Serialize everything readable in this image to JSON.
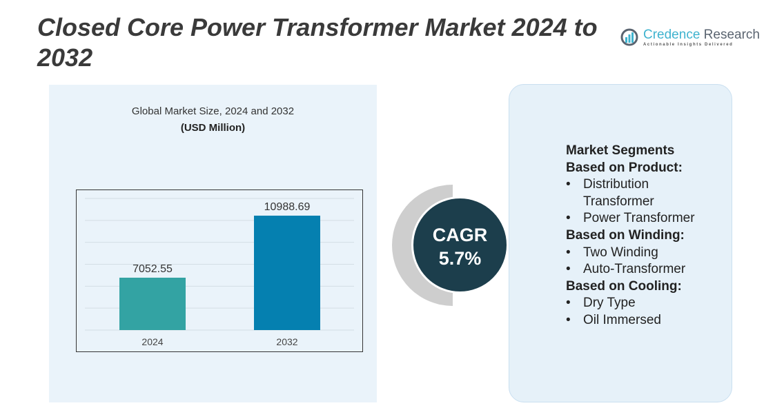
{
  "title": "Closed Core Power Transformer Market 2024 to 2032",
  "logo": {
    "name_a": "Credence",
    "name_b": " Research",
    "tagline": "Actionable Insights Delivered"
  },
  "chart_subtitle": "Global Market Size, 2024 and 2032",
  "chart_units": "(USD Million)",
  "cagr": {
    "label": "CAGR",
    "value": "5.7%"
  },
  "segments": {
    "heading": "Market Segments",
    "groups": [
      {
        "title": "Based on Product:",
        "items": [
          "Distribution Transformer",
          "Power Transformer"
        ]
      },
      {
        "title": "Based on Winding:",
        "items": [
          "Two Winding",
          "Auto-Transformer"
        ]
      },
      {
        "title": "Based on Cooling:",
        "items": [
          "Dry Type",
          "Oil Immersed"
        ]
      }
    ]
  },
  "chart_data": {
    "type": "bar",
    "title": "Global Market Size, 2024 and 2032 (USD Million)",
    "categories": [
      "2024",
      "2032"
    ],
    "values": [
      7052.55,
      10988.69
    ],
    "labels": [
      "7052.55",
      "10988.69"
    ],
    "colors": [
      "#33a3a3",
      "#0580b0"
    ],
    "xlabel": "",
    "ylabel": "",
    "ylim": [
      3729,
      12080
    ],
    "grid": true,
    "gridlines": 6
  }
}
